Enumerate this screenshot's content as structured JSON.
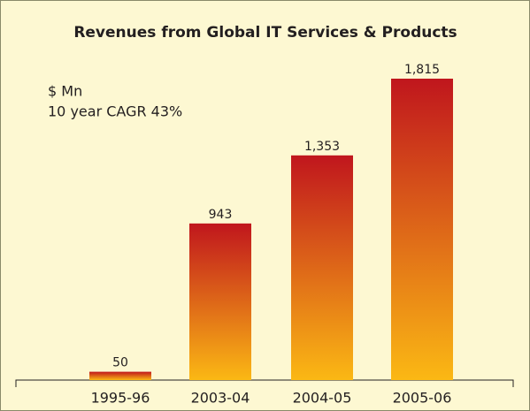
{
  "chart_data": {
    "type": "bar",
    "title": "Revenues from Global IT Services & Products",
    "annotations": [
      "$ Mn",
      "10 year CAGR 43%"
    ],
    "categories": [
      "1995-96",
      "2003-04",
      "2004-05",
      "2005-06"
    ],
    "values": [
      50,
      943,
      1353,
      1815
    ],
    "value_labels": [
      "50",
      "943",
      "1,353",
      "1,815"
    ],
    "color": {
      "top": "#c0161d",
      "bottom": "#fbb814"
    },
    "background": "#fdf8d2"
  }
}
